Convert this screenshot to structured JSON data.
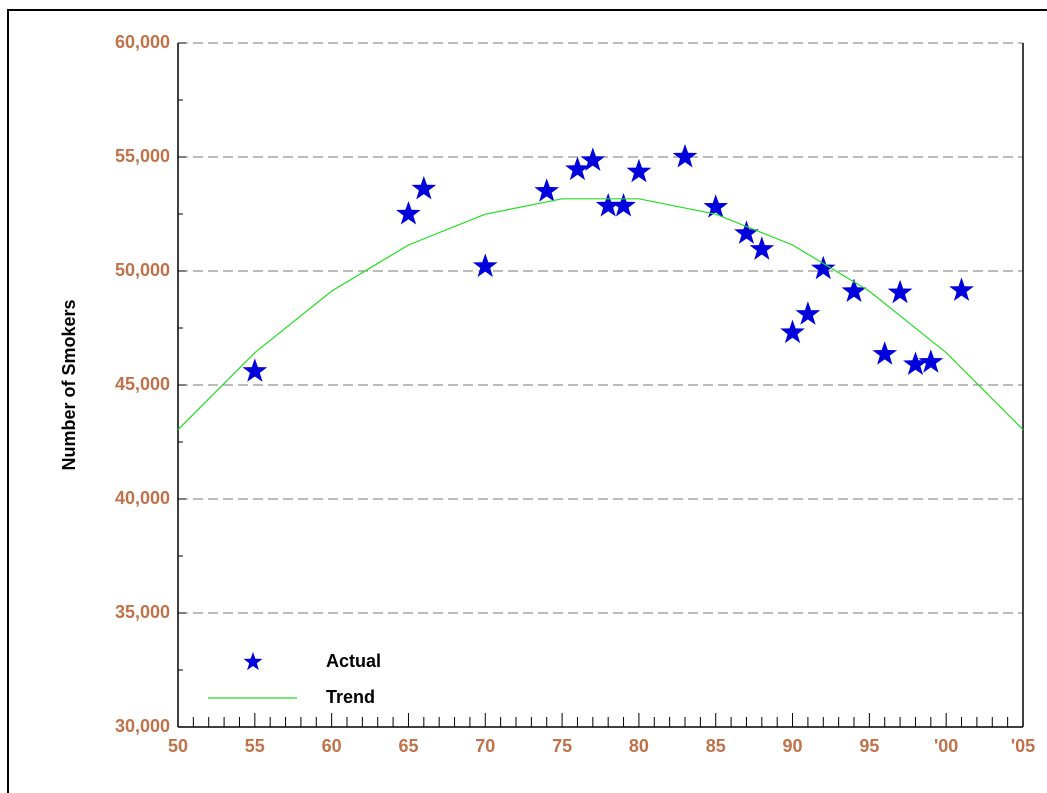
{
  "chart_data": {
    "type": "scatter",
    "y_label": "Number of Smokers",
    "xlim": [
      50,
      105
    ],
    "ylim": [
      30000,
      60000
    ],
    "xticks": [
      50,
      55,
      60,
      65,
      70,
      75,
      80,
      85,
      90,
      95,
      {
        "value": 100,
        "label": "'00"
      },
      {
        "value": 105,
        "label": "'05"
      }
    ],
    "xminorticks": [
      51,
      52,
      53,
      54,
      56,
      57,
      58,
      59,
      61,
      62,
      63,
      64,
      66,
      67,
      68,
      69,
      71,
      72,
      73,
      74,
      76,
      77,
      78,
      79,
      81,
      82,
      83,
      84,
      86,
      87,
      88,
      89,
      91,
      92,
      93,
      94,
      96,
      97,
      98,
      99,
      101,
      102,
      103,
      104
    ],
    "yticks": [
      {
        "value": 30000,
        "label": "30,000"
      },
      {
        "value": 35000,
        "label": "35,000"
      },
      {
        "value": 40000,
        "label": "40,000"
      },
      {
        "value": 45000,
        "label": "45,000"
      },
      {
        "value": 50000,
        "label": "50,000"
      },
      {
        "value": 55000,
        "label": "55,000"
      },
      {
        "value": 60000,
        "label": "60,000"
      }
    ],
    "yminorticks": [
      32500,
      37500,
      42500,
      47500,
      52500,
      57500
    ],
    "grid": true,
    "legend": "lower left",
    "series": [
      {
        "name": "Actual",
        "color": "#0000dd",
        "marker": "star",
        "x": [
          55,
          65,
          66,
          70,
          74,
          76,
          77,
          78,
          79,
          80,
          83,
          85,
          87,
          88,
          90,
          91,
          92,
          94,
          96,
          97,
          98,
          99,
          101
        ],
        "values": [
          45600,
          52500,
          53600,
          50200,
          53500,
          54450,
          54850,
          52850,
          52850,
          54350,
          55000,
          52800,
          51650,
          50950,
          47300,
          48100,
          50100,
          49100,
          46350,
          49050,
          45900,
          46000,
          49150
        ]
      },
      {
        "name": "Trend",
        "color": "#22dd22",
        "marker": "line",
        "x": [
          50,
          55,
          60,
          65,
          70,
          75,
          80,
          85,
          90,
          95,
          100,
          105
        ],
        "values": [
          43040,
          46416,
          49116,
          51141,
          52491,
          53166,
          53166,
          52491,
          51141,
          49116,
          46416,
          43040
        ]
      }
    ]
  }
}
